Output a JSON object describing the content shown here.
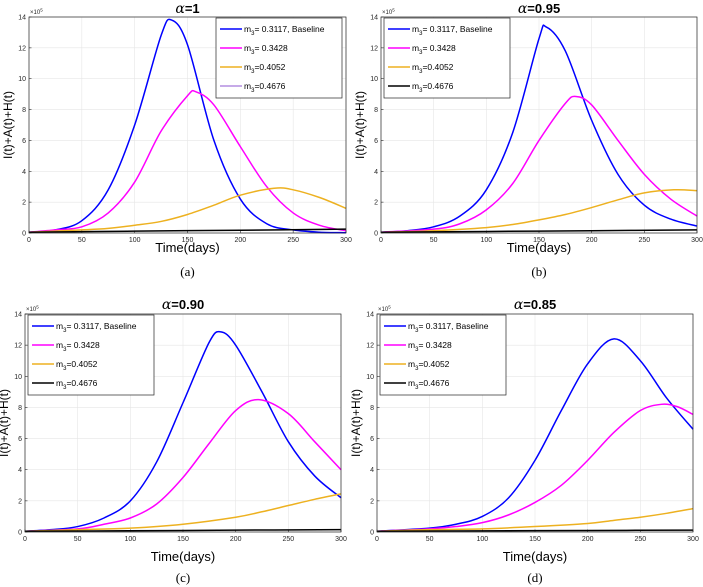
{
  "chart_data": [
    {
      "type": "line",
      "caption": "(a)",
      "title": {
        "symbol": "α",
        "value": "=1"
      },
      "xlabel": "Time(days)",
      "ylabel": "I(t)+A(t)+H(t)",
      "y_multiplier": "×10",
      "y_multiplier_exp": "5",
      "xlim": [
        0,
        300
      ],
      "ylim": [
        0,
        14
      ],
      "xticks": [
        "0",
        "50",
        "100",
        "150",
        "200",
        "250",
        "300"
      ],
      "yticks": [
        "0",
        "2",
        "4",
        "6",
        "8",
        "10",
        "12",
        "14"
      ],
      "grid": true,
      "legend_position": "top-right",
      "series": [
        {
          "sym": "m",
          "sub": "3",
          "text": "= 0.3117, Baseline",
          "color": "#0000ff",
          "legend_color": "#0000ff",
          "x": [
            0,
            25,
            50,
            75,
            100,
            125,
            135,
            150,
            175,
            200,
            225,
            250,
            275,
            300
          ],
          "y": [
            0.05,
            0.2,
            0.8,
            2.8,
            7.0,
            12.8,
            13.8,
            12.2,
            6.0,
            2.2,
            0.6,
            0.2,
            0.05,
            0.02
          ]
        },
        {
          "sym": "m",
          "sub": "3",
          "text": "= 0.3428",
          "color": "#ff00ff",
          "legend_color": "#ff00ff",
          "x": [
            0,
            25,
            50,
            75,
            100,
            125,
            150,
            158,
            175,
            200,
            225,
            250,
            275,
            300
          ],
          "y": [
            0.05,
            0.2,
            0.4,
            1.3,
            3.3,
            6.6,
            8.9,
            9.15,
            8.3,
            5.6,
            3.0,
            1.3,
            0.5,
            0.15
          ]
        },
        {
          "sym": "m",
          "sub": "3",
          "text": "=0.4052",
          "color": "#edb120",
          "legend_color": "#edb120",
          "x": [
            0,
            50,
            75,
            100,
            125,
            150,
            175,
            200,
            232,
            250,
            275,
            300
          ],
          "y": [
            0.05,
            0.2,
            0.3,
            0.5,
            0.75,
            1.2,
            1.8,
            2.45,
            2.9,
            2.8,
            2.3,
            1.6
          ]
        },
        {
          "sym": "m",
          "sub": "3",
          "text": "=0.4676",
          "color": "#000000",
          "legend_color": "#b48ee0",
          "x": [
            0,
            100,
            200,
            300
          ],
          "y": [
            0.05,
            0.12,
            0.18,
            0.25
          ]
        }
      ]
    },
    {
      "type": "line",
      "caption": "(b)",
      "title": {
        "symbol": "α",
        "value": "=0.95"
      },
      "xlabel": "Time(days)",
      "ylabel": "I(t)+A(t)+H(t)",
      "y_multiplier": "×10",
      "y_multiplier_exp": "5",
      "xlim": [
        0,
        300
      ],
      "ylim": [
        0,
        14
      ],
      "xticks": [
        "0",
        "50",
        "100",
        "150",
        "200",
        "250",
        "300"
      ],
      "yticks": [
        "0",
        "2",
        "4",
        "6",
        "8",
        "10",
        "12",
        "14"
      ],
      "grid": true,
      "legend_position": "top-left",
      "series": [
        {
          "sym": "m",
          "sub": "3",
          "text": "= 0.3117, Baseline",
          "color": "#0000ff",
          "legend_color": "#0000ff",
          "x": [
            0,
            25,
            50,
            75,
            100,
            125,
            150,
            157,
            175,
            200,
            225,
            250,
            275,
            300
          ],
          "y": [
            0.05,
            0.15,
            0.4,
            1.1,
            2.8,
            6.5,
            12.6,
            13.35,
            11.8,
            7.3,
            3.8,
            1.8,
            0.9,
            0.45
          ]
        },
        {
          "sym": "m",
          "sub": "3",
          "text": "= 0.3428",
          "color": "#ff00ff",
          "legend_color": "#ff00ff",
          "x": [
            0,
            50,
            75,
            100,
            125,
            150,
            175,
            185,
            200,
            225,
            250,
            275,
            300
          ],
          "y": [
            0.05,
            0.25,
            0.6,
            1.5,
            3.2,
            6.0,
            8.4,
            8.85,
            8.3,
            6.0,
            3.8,
            2.2,
            1.1
          ]
        },
        {
          "sym": "m",
          "sub": "3",
          "text": "=0.4052",
          "color": "#edb120",
          "legend_color": "#edb120",
          "x": [
            0,
            50,
            100,
            125,
            150,
            175,
            200,
            225,
            250,
            278,
            300
          ],
          "y": [
            0.05,
            0.15,
            0.35,
            0.55,
            0.85,
            1.2,
            1.65,
            2.15,
            2.6,
            2.8,
            2.75
          ]
        },
        {
          "sym": "m",
          "sub": "3",
          "text": "=0.4676",
          "color": "#000000",
          "legend_color": "#000000",
          "x": [
            0,
            100,
            200,
            300
          ],
          "y": [
            0.05,
            0.1,
            0.15,
            0.2
          ]
        }
      ]
    },
    {
      "type": "line",
      "caption": "(c)",
      "title": {
        "symbol": "α",
        "value": "=0.90"
      },
      "xlabel": "Time(days)",
      "ylabel": "I(t)+A(t)+H(t)",
      "y_multiplier": "×10",
      "y_multiplier_exp": "5",
      "xlim": [
        0,
        300
      ],
      "ylim": [
        0,
        14
      ],
      "xticks": [
        "0",
        "50",
        "100",
        "150",
        "200",
        "250",
        "300"
      ],
      "yticks": [
        "0",
        "2",
        "4",
        "6",
        "8",
        "10",
        "12",
        "14"
      ],
      "grid": true,
      "legend_position": "top-left",
      "series": [
        {
          "sym": "m",
          "sub": "3",
          "text": "= 0.3117, Baseline",
          "color": "#0000ff",
          "legend_color": "#0000ff",
          "x": [
            0,
            25,
            50,
            75,
            100,
            125,
            150,
            175,
            186,
            200,
            225,
            250,
            275,
            300
          ],
          "y": [
            0.05,
            0.15,
            0.35,
            0.9,
            2.0,
            4.5,
            8.3,
            12.2,
            12.85,
            12.0,
            9.0,
            5.8,
            3.6,
            2.2
          ]
        },
        {
          "sym": "m",
          "sub": "3",
          "text": "= 0.3428",
          "color": "#ff00ff",
          "legend_color": "#ff00ff",
          "x": [
            0,
            50,
            75,
            100,
            125,
            150,
            175,
            200,
            222,
            250,
            275,
            300
          ],
          "y": [
            0.05,
            0.2,
            0.5,
            0.9,
            1.8,
            3.5,
            5.7,
            7.8,
            8.5,
            7.6,
            5.8,
            4.0
          ]
        },
        {
          "sym": "m",
          "sub": "3",
          "text": "=0.4052",
          "color": "#edb120",
          "legend_color": "#edb120",
          "x": [
            0,
            50,
            100,
            150,
            200,
            225,
            250,
            275,
            300
          ],
          "y": [
            0.05,
            0.15,
            0.25,
            0.5,
            0.95,
            1.3,
            1.7,
            2.1,
            2.45
          ]
        },
        {
          "sym": "m",
          "sub": "3",
          "text": "=0.4676",
          "color": "#000000",
          "legend_color": "#000000",
          "x": [
            0,
            100,
            200,
            300
          ],
          "y": [
            0.05,
            0.08,
            0.12,
            0.15
          ]
        }
      ]
    },
    {
      "type": "line",
      "caption": "(d)",
      "title": {
        "symbol": "α",
        "value": "=0.85"
      },
      "xlabel": "Time(days)",
      "ylabel": "I(t)+A(t)+H(t)",
      "y_multiplier": "×10",
      "y_multiplier_exp": "5",
      "xlim": [
        0,
        300
      ],
      "ylim": [
        0,
        14
      ],
      "xticks": [
        "0",
        "50",
        "100",
        "150",
        "200",
        "250",
        "300"
      ],
      "yticks": [
        "0",
        "2",
        "4",
        "6",
        "8",
        "10",
        "12",
        "14"
      ],
      "grid": true,
      "legend_position": "top-left",
      "series": [
        {
          "sym": "m",
          "sub": "3",
          "text": "= 0.3117, Baseline",
          "color": "#0000ff",
          "legend_color": "#0000ff",
          "x": [
            0,
            50,
            75,
            100,
            125,
            150,
            175,
            200,
            225,
            250,
            275,
            300
          ],
          "y": [
            0.05,
            0.25,
            0.5,
            1.0,
            2.2,
            4.6,
            7.8,
            10.8,
            12.4,
            11.0,
            8.6,
            6.6
          ]
        },
        {
          "sym": "m",
          "sub": "3",
          "text": "= 0.3428",
          "color": "#ff00ff",
          "legend_color": "#ff00ff",
          "x": [
            0,
            50,
            75,
            100,
            125,
            150,
            175,
            200,
            225,
            250,
            270,
            285,
            300
          ],
          "y": [
            0.05,
            0.2,
            0.35,
            0.6,
            1.1,
            1.9,
            3.0,
            4.6,
            6.4,
            7.8,
            8.2,
            8.05,
            7.55
          ]
        },
        {
          "sym": "m",
          "sub": "3",
          "text": "=0.4052",
          "color": "#edb120",
          "legend_color": "#edb120",
          "x": [
            0,
            50,
            100,
            150,
            200,
            225,
            250,
            275,
            300
          ],
          "y": [
            0.05,
            0.15,
            0.2,
            0.35,
            0.55,
            0.75,
            0.95,
            1.2,
            1.5
          ]
        },
        {
          "sym": "m",
          "sub": "3",
          "text": "=0.4676",
          "color": "#000000",
          "legend_color": "#000000",
          "x": [
            0,
            100,
            200,
            300
          ],
          "y": [
            0.05,
            0.07,
            0.1,
            0.12
          ]
        }
      ]
    }
  ]
}
